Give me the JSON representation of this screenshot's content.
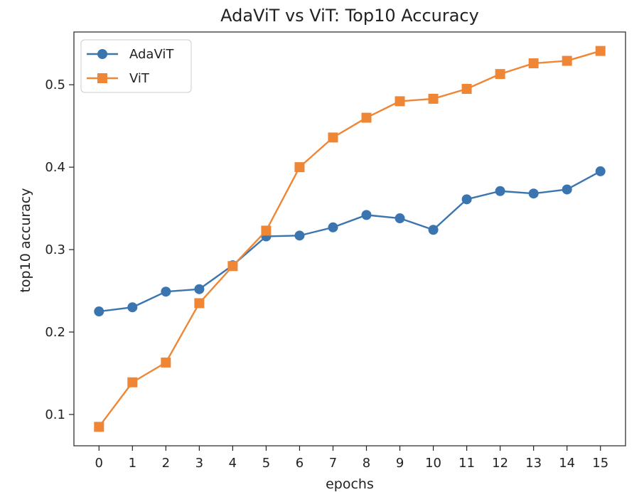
{
  "chart_data": {
    "type": "line",
    "title": "AdaViT vs ViT: Top10 Accuracy",
    "xlabel": "epochs",
    "ylabel": "top10 accuracy",
    "x": [
      0,
      1,
      2,
      3,
      4,
      5,
      6,
      7,
      8,
      9,
      10,
      11,
      12,
      13,
      14,
      15
    ],
    "xlim": [
      -0.75,
      15.75
    ],
    "ylim": [
      0.062,
      0.564
    ],
    "yticks": [
      0.1,
      0.2,
      0.3,
      0.4,
      0.5
    ],
    "ytick_labels": [
      "0.1",
      "0.2",
      "0.3",
      "0.4",
      "0.5"
    ],
    "xtick_labels": [
      "0",
      "1",
      "2",
      "3",
      "4",
      "5",
      "6",
      "7",
      "8",
      "9",
      "10",
      "11",
      "12",
      "13",
      "14",
      "15"
    ],
    "grid": false,
    "legend": {
      "placement": "top-left"
    },
    "series": [
      {
        "name": "AdaViT",
        "color": "#3b75af",
        "marker": "circle",
        "values": [
          0.225,
          0.23,
          0.249,
          0.252,
          0.281,
          0.316,
          0.317,
          0.327,
          0.342,
          0.338,
          0.324,
          0.361,
          0.371,
          0.368,
          0.373,
          0.395
        ]
      },
      {
        "name": "ViT",
        "color": "#ef8636",
        "marker": "square",
        "values": [
          0.085,
          0.139,
          0.163,
          0.235,
          0.28,
          0.323,
          0.4,
          0.436,
          0.46,
          0.48,
          0.483,
          0.495,
          0.513,
          0.526,
          0.529,
          0.541
        ]
      }
    ]
  }
}
